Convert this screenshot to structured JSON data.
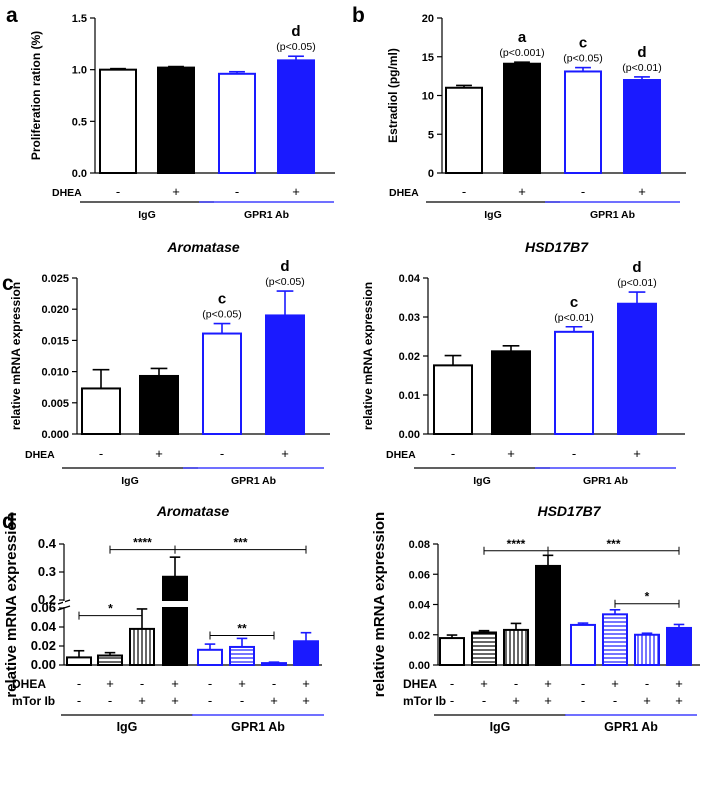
{
  "colors": {
    "black": "#000000",
    "blue": "#1a1aff",
    "white": "#ffffff"
  },
  "row_labels": {
    "dhea": "DHEA",
    "mtor": "mTor Ib"
  },
  "chart_data": [
    {
      "id": "a",
      "panel_letter": "a",
      "type": "bar",
      "title": "",
      "ylabel": "Proliferation ration (%)",
      "ylim": [
        0,
        1.5
      ],
      "yticks": [
        "0.0",
        "0.5",
        "1.0",
        "1.5"
      ],
      "ytick_values": [
        0,
        0.5,
        1.0,
        1.5
      ],
      "categories": [
        "IgG DHEA-",
        "IgG DHEA+",
        "GPR1 Ab DHEA-",
        "GPR1 Ab DHEA+"
      ],
      "values": [
        1.0,
        1.02,
        0.96,
        1.09
      ],
      "errors": [
        0.01,
        0.01,
        0.02,
        0.04
      ],
      "styles": [
        "white",
        "black",
        "blue-outline",
        "blue"
      ],
      "dhea": [
        "-",
        "+",
        "-",
        "+"
      ],
      "annotations": [
        {
          "bar": 3,
          "letter": "d",
          "p": "(p<0.05)"
        }
      ],
      "groups": [
        {
          "label": "IgG",
          "bars": [
            0,
            1
          ],
          "color": "black"
        },
        {
          "label": "GPR1 Ab",
          "bars": [
            2,
            3
          ],
          "color": "blue"
        }
      ]
    },
    {
      "id": "b",
      "panel_letter": "b",
      "type": "bar",
      "title": "",
      "ylabel": "Estradiol (pg/ml)",
      "ylim": [
        0,
        20
      ],
      "yticks": [
        "0",
        "5",
        "10",
        "15",
        "20"
      ],
      "ytick_values": [
        0,
        5,
        10,
        15,
        20
      ],
      "categories": [
        "IgG DHEA-",
        "IgG DHEA+",
        "GPR1 Ab DHEA-",
        "GPR1 Ab DHEA+"
      ],
      "values": [
        11.0,
        14.1,
        13.1,
        12.0
      ],
      "errors": [
        0.3,
        0.2,
        0.5,
        0.4
      ],
      "styles": [
        "white",
        "black",
        "blue-outline",
        "blue"
      ],
      "dhea": [
        "-",
        "+",
        "-",
        "+"
      ],
      "annotations": [
        {
          "bar": 1,
          "letter": "a",
          "p": "(p<0.001)"
        },
        {
          "bar": 2,
          "letter": "c",
          "p": "(p<0.05)"
        },
        {
          "bar": 3,
          "letter": "d",
          "p": "(p<0.01)"
        }
      ],
      "groups": [
        {
          "label": "IgG",
          "bars": [
            0,
            1
          ],
          "color": "black"
        },
        {
          "label": "GPR1 Ab",
          "bars": [
            2,
            3
          ],
          "color": "blue"
        }
      ]
    },
    {
      "id": "c1",
      "panel_letter": "c",
      "type": "bar",
      "title": "Aromatase",
      "ylabel": "relative mRNA expression",
      "ylim": [
        0,
        0.025
      ],
      "yticks": [
        "0.000",
        "0.005",
        "0.010",
        "0.015",
        "0.020",
        "0.025"
      ],
      "ytick_values": [
        0,
        0.005,
        0.01,
        0.015,
        0.02,
        0.025
      ],
      "categories": [
        "IgG DHEA-",
        "IgG DHEA+",
        "GPR1 Ab DHEA-",
        "GPR1 Ab DHEA+"
      ],
      "values": [
        0.0073,
        0.0093,
        0.0161,
        0.019
      ],
      "errors": [
        0.003,
        0.0012,
        0.0016,
        0.0039
      ],
      "styles": [
        "white",
        "black",
        "blue-outline",
        "blue"
      ],
      "dhea": [
        "-",
        "+",
        "-",
        "+"
      ],
      "annotations": [
        {
          "bar": 2,
          "letter": "c",
          "p": "(p<0.05)"
        },
        {
          "bar": 3,
          "letter": "d",
          "p": "(p<0.05)"
        }
      ],
      "groups": [
        {
          "label": "IgG",
          "bars": [
            0,
            1
          ],
          "color": "black"
        },
        {
          "label": "GPR1 Ab",
          "bars": [
            2,
            3
          ],
          "color": "blue"
        }
      ]
    },
    {
      "id": "c2",
      "panel_letter": "",
      "type": "bar",
      "title": "HSD17B7",
      "ylabel": "relative mRNA expression",
      "ylim": [
        0,
        0.04
      ],
      "yticks": [
        "0.00",
        "0.01",
        "0.02",
        "0.03",
        "0.04"
      ],
      "ytick_values": [
        0,
        0.01,
        0.02,
        0.03,
        0.04
      ],
      "categories": [
        "IgG DHEA-",
        "IgG DHEA+",
        "GPR1 Ab DHEA-",
        "GPR1 Ab DHEA+"
      ],
      "values": [
        0.0176,
        0.0212,
        0.0262,
        0.0334
      ],
      "errors": [
        0.0025,
        0.0014,
        0.0013,
        0.003
      ],
      "styles": [
        "white",
        "black",
        "blue-outline",
        "blue"
      ],
      "dhea": [
        "-",
        "+",
        "-",
        "+"
      ],
      "annotations": [
        {
          "bar": 2,
          "letter": "c",
          "p": "(p<0.01)"
        },
        {
          "bar": 3,
          "letter": "d",
          "p": "(p<0.01)"
        }
      ],
      "groups": [
        {
          "label": "IgG",
          "bars": [
            0,
            1
          ],
          "color": "black"
        },
        {
          "label": "GPR1 Ab",
          "bars": [
            2,
            3
          ],
          "color": "blue"
        }
      ]
    },
    {
      "id": "d1",
      "panel_letter": "d",
      "type": "bar",
      "title": "Aromatase",
      "ylabel": "relative mRNA expression",
      "axis_break": {
        "lower": [
          0,
          0.06
        ],
        "upper": [
          0.2,
          0.4
        ]
      },
      "yticks": [
        "0.00",
        "0.02",
        "0.04",
        "0.06",
        "0.2",
        "0.3",
        "0.4"
      ],
      "ytick_values": [
        0,
        0.02,
        0.04,
        0.06,
        0.2,
        0.3,
        0.4
      ],
      "categories": [
        "IgG",
        "IgG DHEA",
        "IgG mTor Ib",
        "IgG DHEA mTor Ib",
        "GPR1 Ab",
        "GPR1 Ab DHEA",
        "GPR1 Ab mTor Ib",
        "GPR1 Ab DHEA mTor Ib"
      ],
      "values": [
        0.008,
        0.01,
        0.038,
        0.283,
        0.016,
        0.019,
        0.002,
        0.025
      ],
      "errors": [
        0.007,
        0.003,
        0.021,
        0.07,
        0.006,
        0.009,
        0.001,
        0.009
      ],
      "styles": [
        "black-outline",
        "black-hstripe",
        "black-vstripe",
        "black",
        "blue-outline",
        "blue-hstripe",
        "blue-vstripe",
        "blue"
      ],
      "dhea": [
        "-",
        "+",
        "-",
        "+",
        "-",
        "+",
        "-",
        "+"
      ],
      "mtor": [
        "-",
        "-",
        "+",
        "+",
        "-",
        "-",
        "+",
        "+"
      ],
      "brackets": [
        {
          "from": 0,
          "to": 2,
          "value": 0.052,
          "label": "*"
        },
        {
          "from": 1,
          "to": 3,
          "value": 0.38,
          "label": "****"
        },
        {
          "from": 3,
          "to": 7,
          "value": 0.38,
          "label": "***"
        },
        {
          "from": 4,
          "to": 6,
          "value": 0.031,
          "label": "**"
        }
      ],
      "groups": [
        {
          "label": "IgG",
          "bars": [
            0,
            3
          ],
          "color": "black"
        },
        {
          "label": "GPR1 Ab",
          "bars": [
            4,
            7
          ],
          "color": "blue"
        }
      ]
    },
    {
      "id": "d2",
      "panel_letter": "",
      "type": "bar",
      "title": "HSD17B7",
      "ylabel": "relative  mRNA expression",
      "ylim": [
        0,
        0.08
      ],
      "yticks": [
        "0.00",
        "0.02",
        "0.04",
        "0.06",
        "0.08"
      ],
      "ytick_values": [
        0,
        0.02,
        0.04,
        0.06,
        0.08
      ],
      "categories": [
        "IgG",
        "IgG DHEA",
        "IgG mTor Ib",
        "IgG DHEA mTor Ib",
        "GPR1 Ab",
        "GPR1 Ab DHEA",
        "GPR1 Ab mTor Ib",
        "GPR1 Ab DHEA mTor Ib"
      ],
      "values": [
        0.0178,
        0.0215,
        0.0232,
        0.0655,
        0.0265,
        0.0335,
        0.02,
        0.0245
      ],
      "errors": [
        0.002,
        0.0012,
        0.0043,
        0.007,
        0.0012,
        0.003,
        0.001,
        0.0023
      ],
      "styles": [
        "black-outline",
        "black-hstripe",
        "black-vstripe",
        "black",
        "blue-outline",
        "blue-hstripe",
        "blue-vstripe",
        "blue"
      ],
      "dhea": [
        "-",
        "+",
        "-",
        "+",
        "-",
        "+",
        "-",
        "+"
      ],
      "mtor": [
        "-",
        "-",
        "+",
        "+",
        "-",
        "-",
        "+",
        "+"
      ],
      "brackets": [
        {
          "from": 1,
          "to": 3,
          "value": 0.0755,
          "label": "****"
        },
        {
          "from": 3,
          "to": 7,
          "value": 0.0755,
          "label": "***"
        },
        {
          "from": 5,
          "to": 7,
          "value": 0.0405,
          "label": "*"
        }
      ],
      "groups": [
        {
          "label": "IgG",
          "bars": [
            0,
            3
          ],
          "color": "black"
        },
        {
          "label": "GPR1 Ab",
          "bars": [
            4,
            7
          ],
          "color": "blue"
        }
      ]
    }
  ]
}
